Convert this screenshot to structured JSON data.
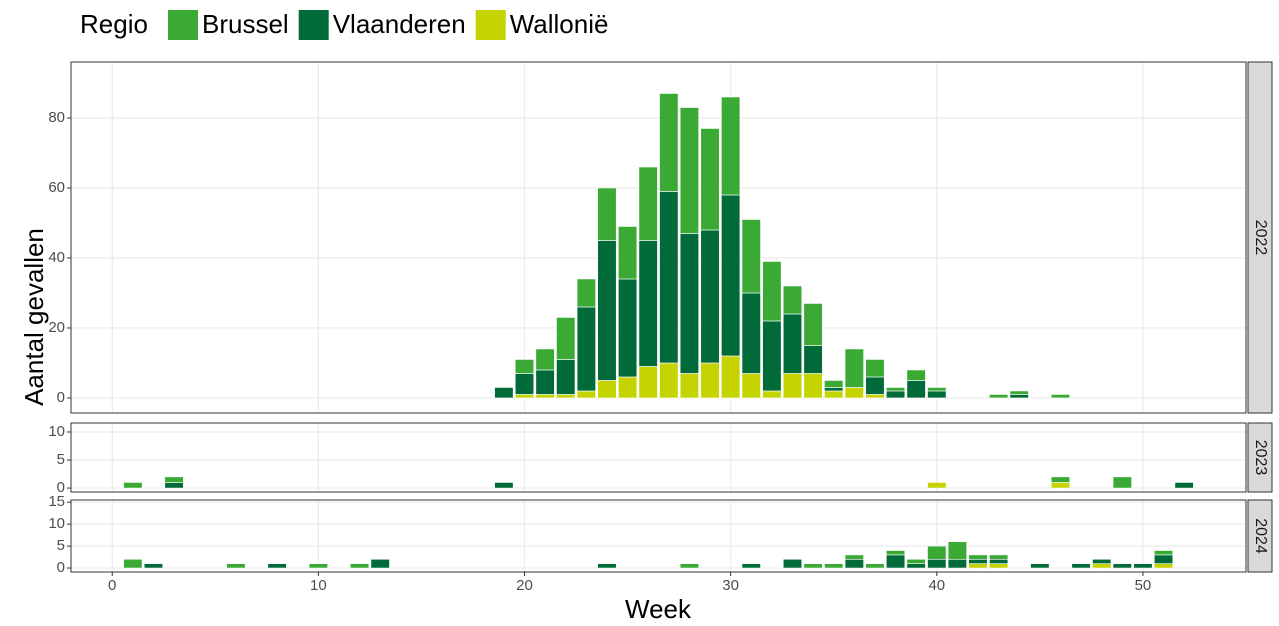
{
  "chart_data": {
    "type": "bar",
    "stacked": true,
    "xlabel": "Week",
    "ylabel": "Aantal gevallen",
    "legend_title": "Regio",
    "xlim": [
      -2,
      55
    ],
    "xticks": [
      0,
      10,
      20,
      30,
      40,
      50
    ],
    "grid": true,
    "series": [
      {
        "name": "Brussel",
        "color": "#3aaa35"
      },
      {
        "name": "Vlaanderen",
        "color": "#006b38"
      },
      {
        "name": "Wallonië",
        "color": "#c5d300"
      }
    ],
    "panels": [
      {
        "label": "2022",
        "ylim": [
          -4.3,
          96
        ],
        "yticks": [
          0,
          20,
          40,
          60,
          80
        ],
        "x": [
          19,
          20,
          21,
          22,
          23,
          24,
          25,
          26,
          27,
          28,
          29,
          30,
          31,
          32,
          33,
          34,
          35,
          36,
          37,
          38,
          39,
          40,
          43,
          44,
          46
        ],
        "values": [
          [
            0,
            4,
            6,
            12,
            8,
            15,
            15,
            21,
            28,
            36,
            29,
            28,
            21,
            17,
            8,
            12,
            2,
            11,
            5,
            1,
            3,
            1,
            1,
            1,
            1
          ],
          [
            3,
            6,
            7,
            10,
            24,
            40,
            28,
            36,
            49,
            40,
            38,
            46,
            23,
            20,
            17,
            8,
            1,
            0,
            5,
            2,
            5,
            2,
            0,
            1,
            0
          ],
          [
            0,
            1,
            1,
            1,
            2,
            5,
            6,
            9,
            10,
            7,
            10,
            12,
            7,
            2,
            7,
            7,
            2,
            3,
            1,
            0,
            0,
            0,
            0,
            0,
            0
          ]
        ]
      },
      {
        "label": "2023",
        "ylim": [
          -0.7,
          11.6
        ],
        "yticks": [
          0,
          5,
          10
        ],
        "x": [
          1,
          3,
          19,
          40,
          46,
          49,
          52
        ],
        "values": [
          [
            1,
            1,
            0,
            0,
            1,
            2,
            0
          ],
          [
            0,
            1,
            1,
            0,
            0,
            0,
            1
          ],
          [
            0,
            0,
            0,
            1,
            1,
            0,
            0
          ]
        ]
      },
      {
        "label": "2024",
        "ylim": [
          -0.9,
          15.5
        ],
        "yticks": [
          0,
          5,
          10,
          15
        ],
        "x": [
          1,
          2,
          6,
          8,
          10,
          12,
          13,
          24,
          28,
          31,
          33,
          34,
          35,
          36,
          37,
          38,
          39,
          40,
          41,
          42,
          43,
          45,
          47,
          48,
          49,
          50,
          51
        ],
        "values": [
          [
            2,
            0,
            1,
            0,
            1,
            1,
            0,
            0,
            1,
            0,
            0,
            1,
            1,
            1,
            1,
            1,
            1,
            3,
            4,
            1,
            1,
            0,
            0,
            0,
            0,
            0,
            1
          ],
          [
            0,
            1,
            0,
            1,
            0,
            0,
            2,
            1,
            0,
            1,
            2,
            0,
            0,
            2,
            0,
            3,
            1,
            2,
            2,
            1,
            1,
            1,
            1,
            1,
            1,
            1,
            2
          ],
          [
            0,
            0,
            0,
            0,
            0,
            0,
            0,
            0,
            0,
            0,
            0,
            0,
            0,
            0,
            0,
            0,
            0,
            0,
            0,
            1,
            1,
            0,
            0,
            1,
            0,
            0,
            1
          ]
        ]
      }
    ]
  }
}
